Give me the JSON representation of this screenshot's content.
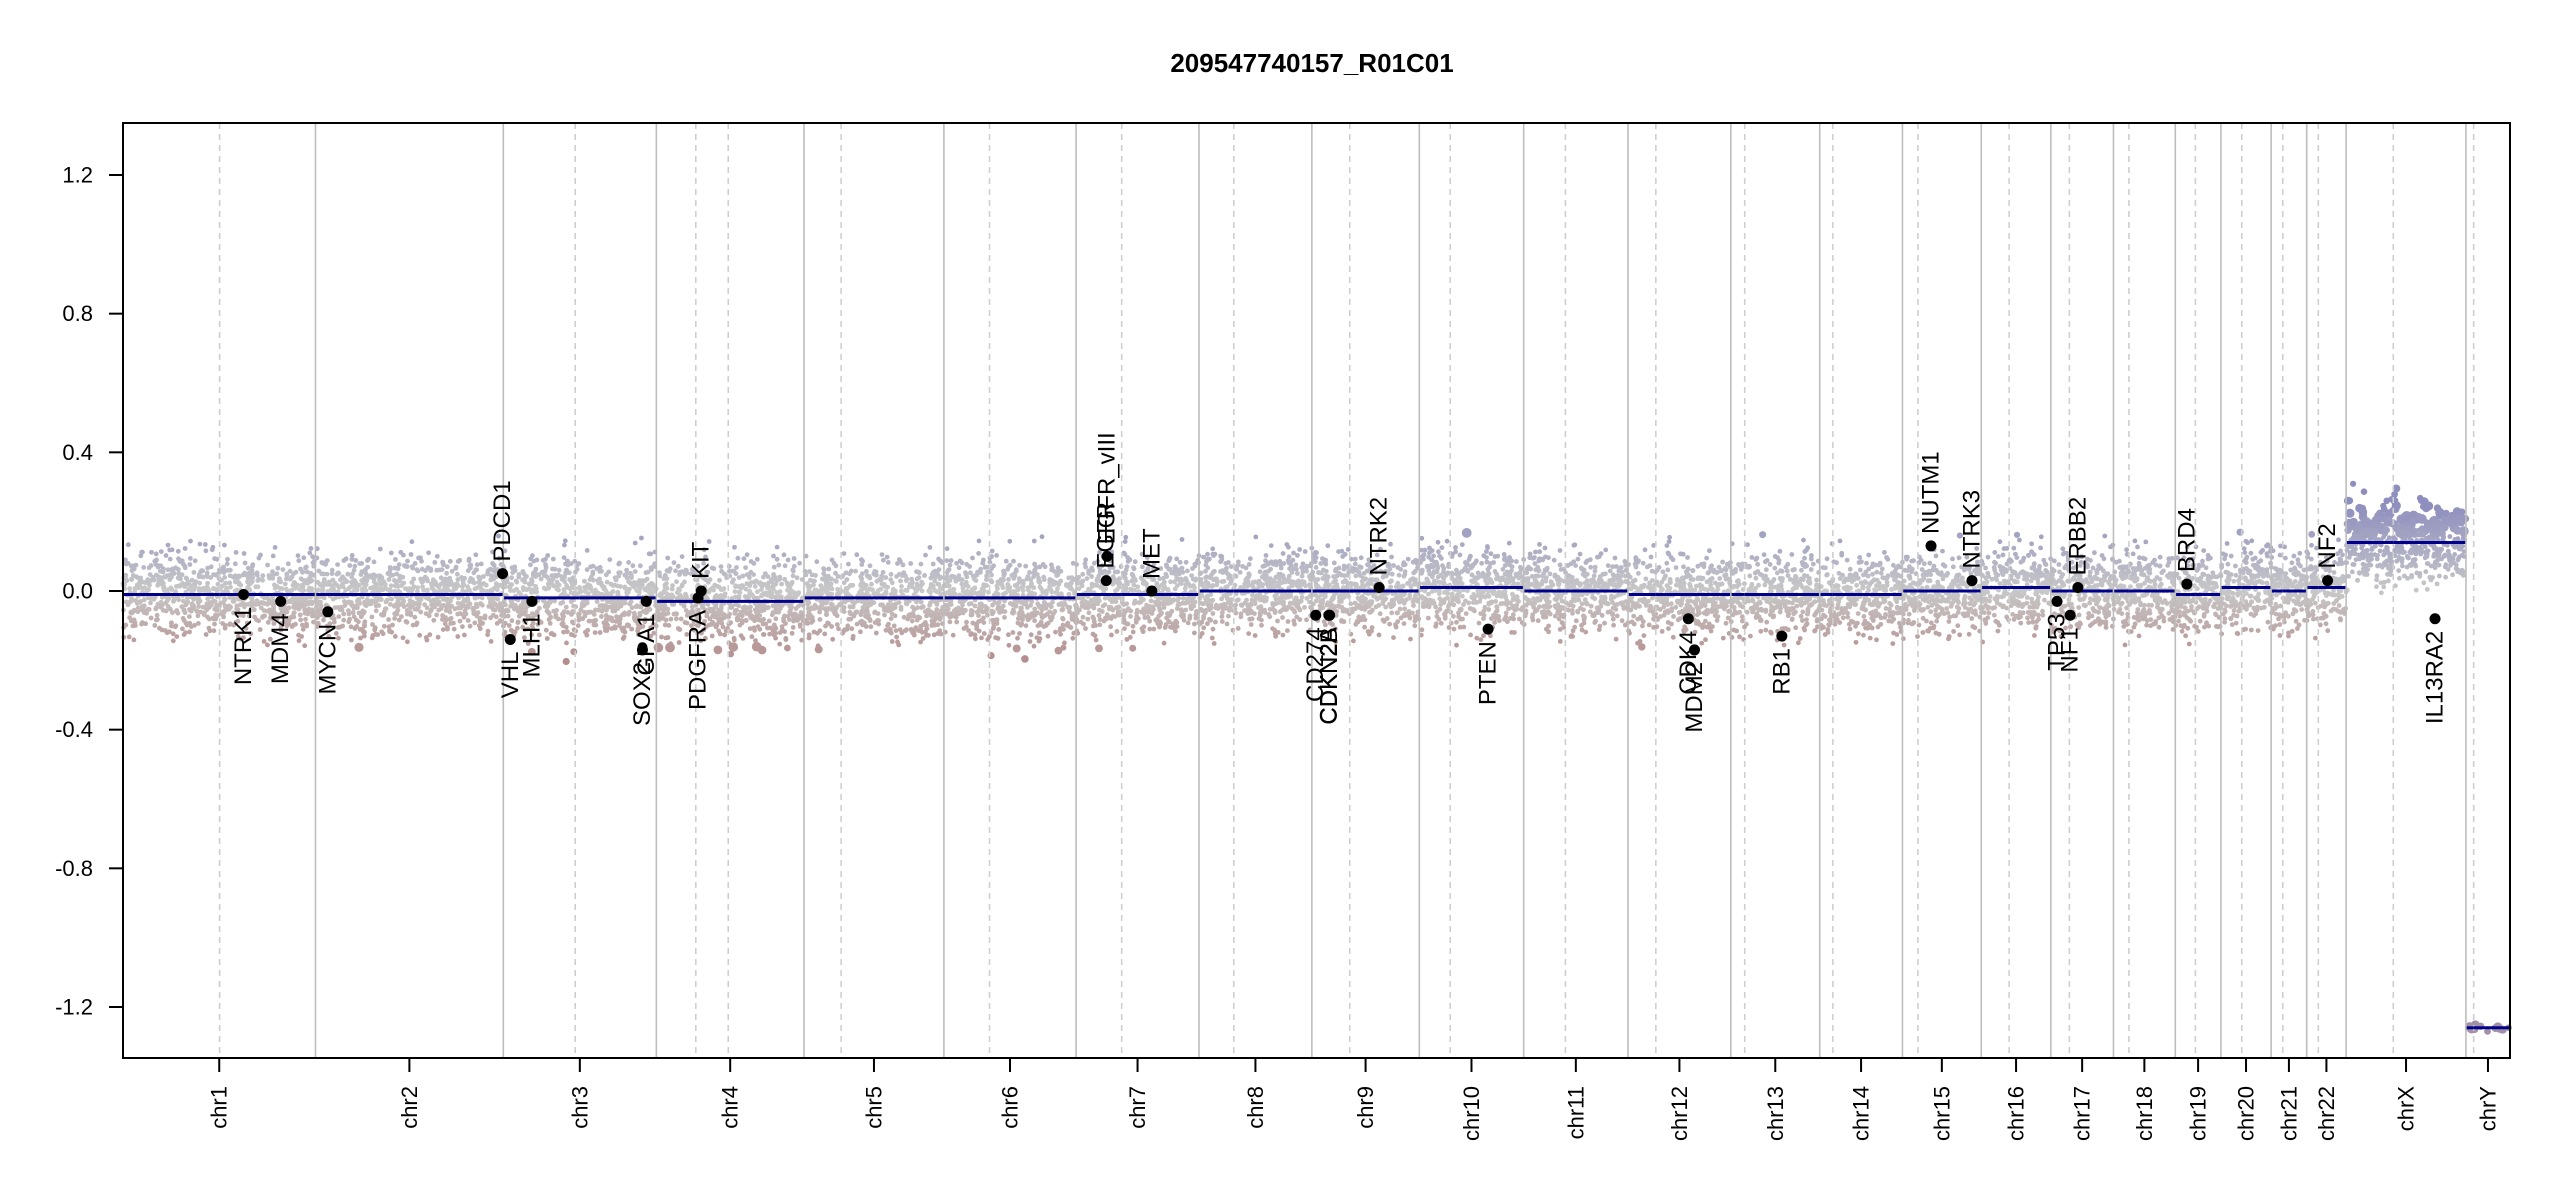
{
  "chart_data": {
    "type": "scatter",
    "title": "209547740157_R01C01",
    "xlabel": "",
    "ylabel": "",
    "ylim": [
      -1.35,
      1.35
    ],
    "y_ticks": [
      -1.2,
      -0.8,
      -0.4,
      0.0,
      0.4,
      0.8,
      1.2
    ],
    "y_tick_labels": [
      "-1.2",
      "-0.8",
      "-0.4",
      "0.0",
      "0.4",
      "0.8",
      "1.2"
    ],
    "grid": false,
    "colors": {
      "gain": "#8e8ebf",
      "loss": "#b07f7f",
      "neutral": "#c8c8c8",
      "segment": "#00008b",
      "gene_point": "#000000",
      "chrom_border": "#bdbdbd",
      "centromere": "#cfcfcf"
    },
    "chromosomes": [
      {
        "name": "chr1",
        "end": 249,
        "centromere": 125,
        "seg": [
          -0.01,
          -0.01
        ]
      },
      {
        "name": "chr2",
        "end": 492,
        "centromere": 585,
        "seg": [
          -0.01,
          -0.01
        ]
      },
      {
        "name": "chr3",
        "end": 690,
        "centromere": 783,
        "seg": [
          -0.02,
          -0.02
        ]
      },
      {
        "name": "chr4",
        "end": 881,
        "centromere": 741,
        "seg": [
          -0.03,
          -0.03
        ]
      },
      {
        "name": "chr5",
        "end": 1062,
        "centromere": 929,
        "seg": [
          -0.02,
          -0.02
        ]
      },
      {
        "name": "chr6",
        "end": 1233,
        "centromere": 1121,
        "seg": [
          -0.02,
          -0.02
        ]
      },
      {
        "name": "chr7",
        "end": 1392,
        "centromere": 1292,
        "seg": [
          -0.01,
          -0.01
        ]
      },
      {
        "name": "chr8",
        "end": 1538,
        "centromere": 1437,
        "seg": [
          0.0,
          0.0
        ]
      },
      {
        "name": "chr9",
        "end": 1677,
        "centromere": 1587,
        "seg": [
          0.0,
          0.0
        ]
      },
      {
        "name": "chr10",
        "end": 1812,
        "centromere": 1717,
        "seg": [
          0.01,
          0.01
        ]
      },
      {
        "name": "chr11",
        "end": 1947,
        "centromere": 1866,
        "seg": [
          0.0,
          0.0
        ]
      },
      {
        "name": "chr12",
        "end": 2080,
        "centromere": 1983,
        "seg": [
          -0.01,
          -0.01
        ]
      },
      {
        "name": "chr13",
        "end": 2195,
        "centromere": 2098,
        "seg": [
          -0.01,
          -0.01
        ]
      },
      {
        "name": "chr14",
        "end": 2302,
        "centromere": 2212,
        "seg": [
          -0.01,
          -0.01
        ]
      },
      {
        "name": "chr15",
        "end": 2404,
        "centromere": 2322,
        "seg": [
          0.0,
          0.0
        ]
      },
      {
        "name": "chr16",
        "end": 2494,
        "centromere": 2440,
        "seg": [
          0.01,
          0.01
        ]
      },
      {
        "name": "chr17",
        "end": 2575,
        "centromere": 2518,
        "seg": [
          0.0,
          0.0
        ]
      },
      {
        "name": "chr18",
        "end": 2655,
        "centromere": 2595,
        "seg": [
          0.0,
          0.0
        ]
      },
      {
        "name": "chr19",
        "end": 2714,
        "centromere": 2681,
        "seg": [
          -0.01,
          -0.01
        ]
      },
      {
        "name": "chr20",
        "end": 2779,
        "centromere": 2741,
        "seg": [
          0.01,
          0.01
        ]
      },
      {
        "name": "chr21",
        "end": 2825,
        "centromere": 2794,
        "seg": [
          0.0,
          0.0
        ]
      },
      {
        "name": "chr22",
        "end": 2876,
        "centromere": 2840,
        "seg": [
          0.01,
          0.01
        ]
      },
      {
        "name": "chrX",
        "end": 3031,
        "centromere": 2937,
        "seg": [
          0.14,
          0.14
        ]
      },
      {
        "name": "chrY",
        "end": 3088,
        "centromere": 3041,
        "seg": [
          -1.26,
          -1.26
        ]
      }
    ],
    "genes": [
      {
        "name": "NTRK1",
        "chrom": "chr1",
        "x": 156,
        "y": -0.01
      },
      {
        "name": "MDM4",
        "chrom": "chr1",
        "x": 204,
        "y": -0.03
      },
      {
        "name": "MYCN",
        "chrom": "chr2",
        "x": 265,
        "y": -0.06
      },
      {
        "name": "PDCD1",
        "chrom": "chr2",
        "x": 491,
        "y": 0.05
      },
      {
        "name": "VHL",
        "chrom": "chr3",
        "x": 501,
        "y": -0.14
      },
      {
        "name": "MLH1",
        "chrom": "chr3",
        "x": 529,
        "y": -0.03
      },
      {
        "name": "SOX2",
        "chrom": "chr3",
        "x": 672,
        "y": -0.17
      },
      {
        "name": "GPA1",
        "chrom": "chr3",
        "x": 677,
        "y": -0.03
      },
      {
        "name": "PDGFRA",
        "chrom": "chr4",
        "x": 744,
        "y": -0.02
      },
      {
        "name": "KIT",
        "chrom": "chr4",
        "x": 748,
        "y": 0.0
      },
      {
        "name": "EGFR",
        "chrom": "chr7",
        "x": 1272,
        "y": 0.03
      },
      {
        "name": "EGFR_vIII",
        "chrom": "chr7",
        "x": 1273,
        "y": 0.1
      },
      {
        "name": "MET",
        "chrom": "chr7",
        "x": 1331,
        "y": 0.0
      },
      {
        "name": "CD274",
        "chrom": "chr9",
        "x": 1543,
        "y": -0.07
      },
      {
        "name": "CDKN2A",
        "chrom": "chr9",
        "x": 1560,
        "y": -0.07
      },
      {
        "name": "CDKN2B",
        "chrom": "chr9",
        "x": 1561,
        "y": -0.07
      },
      {
        "name": "NTRK2",
        "chrom": "chr9",
        "x": 1625,
        "y": 0.01
      },
      {
        "name": "PTEN",
        "chrom": "chr10",
        "x": 1766,
        "y": -0.11
      },
      {
        "name": "CDK4",
        "chrom": "chr12",
        "x": 2025,
        "y": -0.08
      },
      {
        "name": "MDM2",
        "chrom": "chr12",
        "x": 2033,
        "y": -0.17
      },
      {
        "name": "RB1",
        "chrom": "chr13",
        "x": 2146,
        "y": -0.13
      },
      {
        "name": "NUTM1",
        "chrom": "chr15",
        "x": 2339,
        "y": 0.13
      },
      {
        "name": "NTRK3",
        "chrom": "chr15",
        "x": 2392,
        "y": 0.03
      },
      {
        "name": "TP53",
        "chrom": "chr17",
        "x": 2502,
        "y": -0.03
      },
      {
        "name": "NF1",
        "chrom": "chr17",
        "x": 2519,
        "y": -0.07
      },
      {
        "name": "ERBB2",
        "chrom": "chr17",
        "x": 2529,
        "y": 0.01
      },
      {
        "name": "BRD4",
        "chrom": "chr19",
        "x": 2670,
        "y": 0.02
      },
      {
        "name": "NF2",
        "chrom": "chr22",
        "x": 2852,
        "y": 0.03
      },
      {
        "name": "IL13RA2",
        "chrom": "chrX",
        "x": 2991,
        "y": -0.08
      }
    ]
  }
}
